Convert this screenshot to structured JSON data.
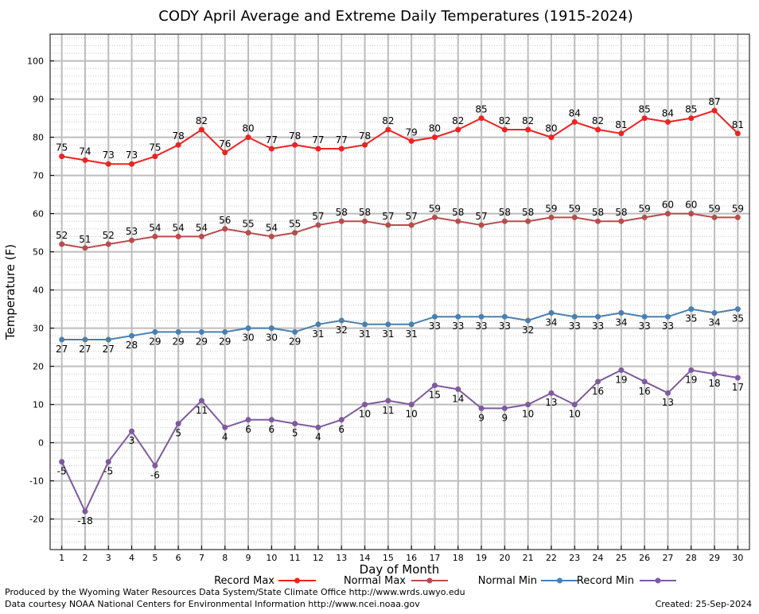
{
  "chart_data": {
    "type": "line",
    "title": "CODY April Average and Extreme Daily Temperatures (1915-2024)",
    "xlabel": "Day of Month",
    "ylabel": "Temperature (F)",
    "xlim": [
      0.5,
      30.5
    ],
    "ylim": [
      -28,
      107
    ],
    "x_ticks": [
      1,
      2,
      3,
      4,
      5,
      6,
      7,
      8,
      9,
      10,
      11,
      12,
      13,
      14,
      15,
      16,
      17,
      18,
      19,
      20,
      21,
      22,
      23,
      24,
      25,
      26,
      27,
      28,
      29,
      30
    ],
    "y_ticks": [
      -20,
      -10,
      0,
      10,
      20,
      30,
      40,
      50,
      60,
      70,
      80,
      90,
      100
    ],
    "grid": true,
    "legend_position": "bottom",
    "x": [
      1,
      2,
      3,
      4,
      5,
      6,
      7,
      8,
      9,
      10,
      11,
      12,
      13,
      14,
      15,
      16,
      17,
      18,
      19,
      20,
      21,
      22,
      23,
      24,
      25,
      26,
      27,
      28,
      29,
      30
    ],
    "series": [
      {
        "name": "Record Max",
        "color": "#ee2222",
        "label_position": "above",
        "values": [
          75,
          74,
          73,
          73,
          75,
          78,
          82,
          76,
          80,
          77,
          78,
          77,
          77,
          78,
          82,
          79,
          80,
          82,
          85,
          82,
          82,
          80,
          84,
          82,
          81,
          85,
          84,
          85,
          87,
          81
        ]
      },
      {
        "name": "Normal Max",
        "color": "#b84c4c",
        "label_position": "above",
        "values": [
          52,
          51,
          52,
          53,
          54,
          54,
          54,
          56,
          55,
          54,
          55,
          57,
          58,
          58,
          57,
          57,
          59,
          58,
          57,
          58,
          58,
          59,
          59,
          58,
          58,
          59,
          60,
          60,
          59,
          59
        ]
      },
      {
        "name": "Normal Min",
        "color": "#4a7fb0",
        "label_position": "below",
        "values": [
          27,
          27,
          27,
          28,
          29,
          29,
          29,
          29,
          30,
          30,
          29,
          31,
          32,
          31,
          31,
          31,
          33,
          33,
          33,
          33,
          32,
          34,
          33,
          33,
          34,
          33,
          33,
          35,
          34,
          35
        ]
      },
      {
        "name": "Record Min",
        "color": "#7e5a9e",
        "label_position": "below",
        "values": [
          -5,
          -18,
          -5,
          3,
          -6,
          5,
          11,
          4,
          6,
          6,
          5,
          4,
          6,
          10,
          11,
          10,
          15,
          14,
          9,
          9,
          10,
          13,
          10,
          16,
          19,
          16,
          13,
          19,
          18,
          17
        ]
      }
    ]
  },
  "credits": {
    "line1": "Produced by the Wyoming Water Resources Data System/State Climate Office http://www.wrds.uwyo.edu",
    "line2": "Data courtesy NOAA National Centers for Environmental Information http://www.ncei.noaa.gov",
    "created": "Created:  25-Sep-2024"
  }
}
